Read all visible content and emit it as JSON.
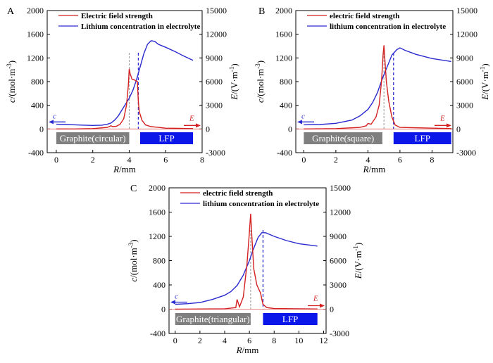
{
  "chart_data": [
    {
      "panel": "A",
      "type": "line",
      "xlabel_var": "R",
      "xlabel_unit": "/mm",
      "ylabel_left_var": "c",
      "ylabel_left_unit": "/(mol·m",
      "ylabel_right_var": "E",
      "ylabel_right_unit": "/(V·m",
      "unit_exponent": "-3",
      "unit_exponent_right": "-1",
      "xlim": [
        -0.5,
        8
      ],
      "xticks": [
        0,
        2,
        4,
        6,
        8
      ],
      "ylim_left": [
        -400,
        2000
      ],
      "yticks_left": [
        -400,
        0,
        400,
        800,
        1200,
        1600,
        2000
      ],
      "ylim_right": [
        -3000,
        15000
      ],
      "yticks_right": [
        -3000,
        0,
        3000,
        6000,
        9000,
        12000,
        15000
      ],
      "legend": [
        "Electric field strength",
        "Lithium concentration in electrolyte"
      ],
      "legend_bold": true,
      "graphite_label": "Graphite(circular)",
      "lfp_label": "LFP",
      "graphite_range": [
        0,
        4.0
      ],
      "lfp_range": [
        4.6,
        7.5
      ],
      "dashed_x_red": 4.0,
      "dashed_x_blue": 4.5,
      "arrow_c_label": "c",
      "arrow_E_label": "E",
      "series": [
        {
          "name": "Lithium concentration in electrolyte",
          "axis": "left",
          "color": "#2a2ad0",
          "x": [
            0,
            0.5,
            1,
            1.5,
            2,
            2.5,
            2.8,
            3.0,
            3.2,
            3.4,
            3.6,
            3.8,
            4.0,
            4.2,
            4.4,
            4.6,
            4.8,
            5.0,
            5.2,
            5.4,
            5.6,
            6.0,
            6.5,
            7.0,
            7.5
          ],
          "y": [
            80,
            75,
            70,
            65,
            60,
            65,
            80,
            100,
            150,
            220,
            320,
            420,
            520,
            650,
            830,
            1050,
            1270,
            1430,
            1490,
            1480,
            1430,
            1380,
            1310,
            1230,
            1160
          ]
        },
        {
          "name": "Electric field strength",
          "axis": "right",
          "color": "#d42020",
          "x": [
            0,
            1,
            2,
            2.8,
            3.0,
            3.1,
            3.3,
            3.5,
            3.7,
            3.85,
            3.95,
            4.0,
            4.05,
            4.15,
            4.3,
            4.45,
            4.5,
            4.55,
            4.7,
            4.9,
            5.2,
            5.6,
            6.0,
            7.5
          ],
          "y": [
            0,
            0,
            50,
            200,
            400,
            300,
            350,
            600,
            1300,
            3000,
            5500,
            7600,
            7000,
            6300,
            6200,
            6000,
            3500,
            2200,
            1100,
            500,
            300,
            200,
            100,
            50
          ]
        }
      ]
    },
    {
      "panel": "B",
      "type": "line",
      "xlabel_var": "R",
      "xlabel_unit": "/mm",
      "ylabel_left_var": "c",
      "ylabel_left_unit": "/(mol·m",
      "ylabel_right_var": "E",
      "ylabel_right_unit": "/(V·m",
      "unit_exponent": "-3",
      "unit_exponent_right": "-1",
      "xlim": [
        -0.5,
        9.3
      ],
      "xticks": [
        0,
        2,
        4,
        6,
        8
      ],
      "ylim_left": [
        -400,
        2000
      ],
      "yticks_left": [
        -400,
        0,
        400,
        800,
        1200,
        1600,
        2000
      ],
      "ylim_right": [
        -3000,
        15000
      ],
      "yticks_right": [
        -3000,
        0,
        3000,
        6000,
        9000,
        12000,
        15000
      ],
      "legend": [
        "electric field strength",
        "lithium concentration in electrolyte"
      ],
      "legend_bold": true,
      "graphite_label": "Graphite(square)",
      "lfp_label": "LFP",
      "graphite_range": [
        0,
        4.9
      ],
      "lfp_range": [
        5.6,
        9.2
      ],
      "dashed_x_red": 5.0,
      "dashed_x_blue": 5.6,
      "arrow_c_label": "c",
      "arrow_E_label": "E",
      "series": [
        {
          "name": "lithium concentration in electrolyte",
          "axis": "left",
          "color": "#2a2ad0",
          "x": [
            0,
            1,
            2,
            3,
            3.5,
            4,
            4.3,
            4.6,
            4.9,
            5.2,
            5.5,
            5.8,
            6.0,
            6.3,
            7.0,
            8.0,
            9.2
          ],
          "y": [
            70,
            75,
            95,
            150,
            220,
            330,
            450,
            620,
            850,
            1050,
            1250,
            1340,
            1370,
            1330,
            1260,
            1190,
            1140
          ]
        },
        {
          "name": "electric field strength",
          "axis": "right",
          "color": "#d42020",
          "x": [
            0,
            2,
            3.5,
            3.9,
            4.0,
            4.2,
            4.5,
            4.7,
            4.85,
            4.95,
            5.0,
            5.05,
            5.15,
            5.3,
            5.5,
            5.7,
            6.0,
            9.2
          ],
          "y": [
            0,
            50,
            200,
            400,
            700,
            600,
            1500,
            3000,
            6000,
            9500,
            10600,
            9000,
            6000,
            3500,
            1500,
            500,
            200,
            50
          ]
        }
      ]
    },
    {
      "panel": "C",
      "type": "line",
      "xlabel_var": "R",
      "xlabel_unit": "/mm",
      "ylabel_left_var": "c",
      "ylabel_left_unit": "/(mol·m",
      "ylabel_right_var": "E",
      "ylabel_right_unit": "/(V·m",
      "unit_exponent": "-3",
      "unit_exponent_right": "-1",
      "xlim": [
        -0.5,
        12.2
      ],
      "xticks": [
        0,
        2,
        4,
        6,
        8,
        10,
        12
      ],
      "ylim_left": [
        -400,
        2000
      ],
      "yticks_left": [
        -400,
        0,
        400,
        800,
        1200,
        1600,
        2000
      ],
      "ylim_right": [
        -3000,
        15000
      ],
      "yticks_right": [
        -3000,
        0,
        3000,
        6000,
        9000,
        12000,
        15000
      ],
      "legend": [
        "electric field strength",
        "lithium concentration in electrolyte"
      ],
      "legend_bold": true,
      "graphite_label": "Graphite(triangular)",
      "lfp_label": "LFP",
      "graphite_range": [
        0,
        6.1
      ],
      "lfp_range": [
        7.1,
        11.5
      ],
      "dashed_x_red": 6.1,
      "dashed_x_blue": 7.1,
      "arrow_c_label": "c",
      "arrow_E_label": "E",
      "series": [
        {
          "name": "lithium concentration in electrolyte",
          "axis": "left",
          "color": "#2a2ad0",
          "x": [
            0,
            1,
            2,
            3,
            4,
            4.5,
            5,
            5.5,
            6,
            6.3,
            6.7,
            7.0,
            7.3,
            8,
            9,
            10,
            11.5
          ],
          "y": [
            80,
            90,
            110,
            160,
            230,
            290,
            390,
            560,
            800,
            980,
            1180,
            1260,
            1260,
            1200,
            1130,
            1080,
            1040
          ]
        },
        {
          "name": "electric field strength",
          "axis": "right",
          "color": "#d42020",
          "x": [
            0,
            4,
            4.9,
            5.0,
            5.2,
            5.5,
            5.8,
            6.0,
            6.1,
            6.2,
            6.35,
            6.6,
            6.9,
            7.1,
            7.4,
            8,
            11.5
          ],
          "y": [
            0,
            50,
            200,
            1200,
            300,
            1500,
            5500,
            9500,
            11800,
            9000,
            5000,
            3000,
            2000,
            600,
            200,
            80,
            30
          ]
        }
      ]
    }
  ]
}
